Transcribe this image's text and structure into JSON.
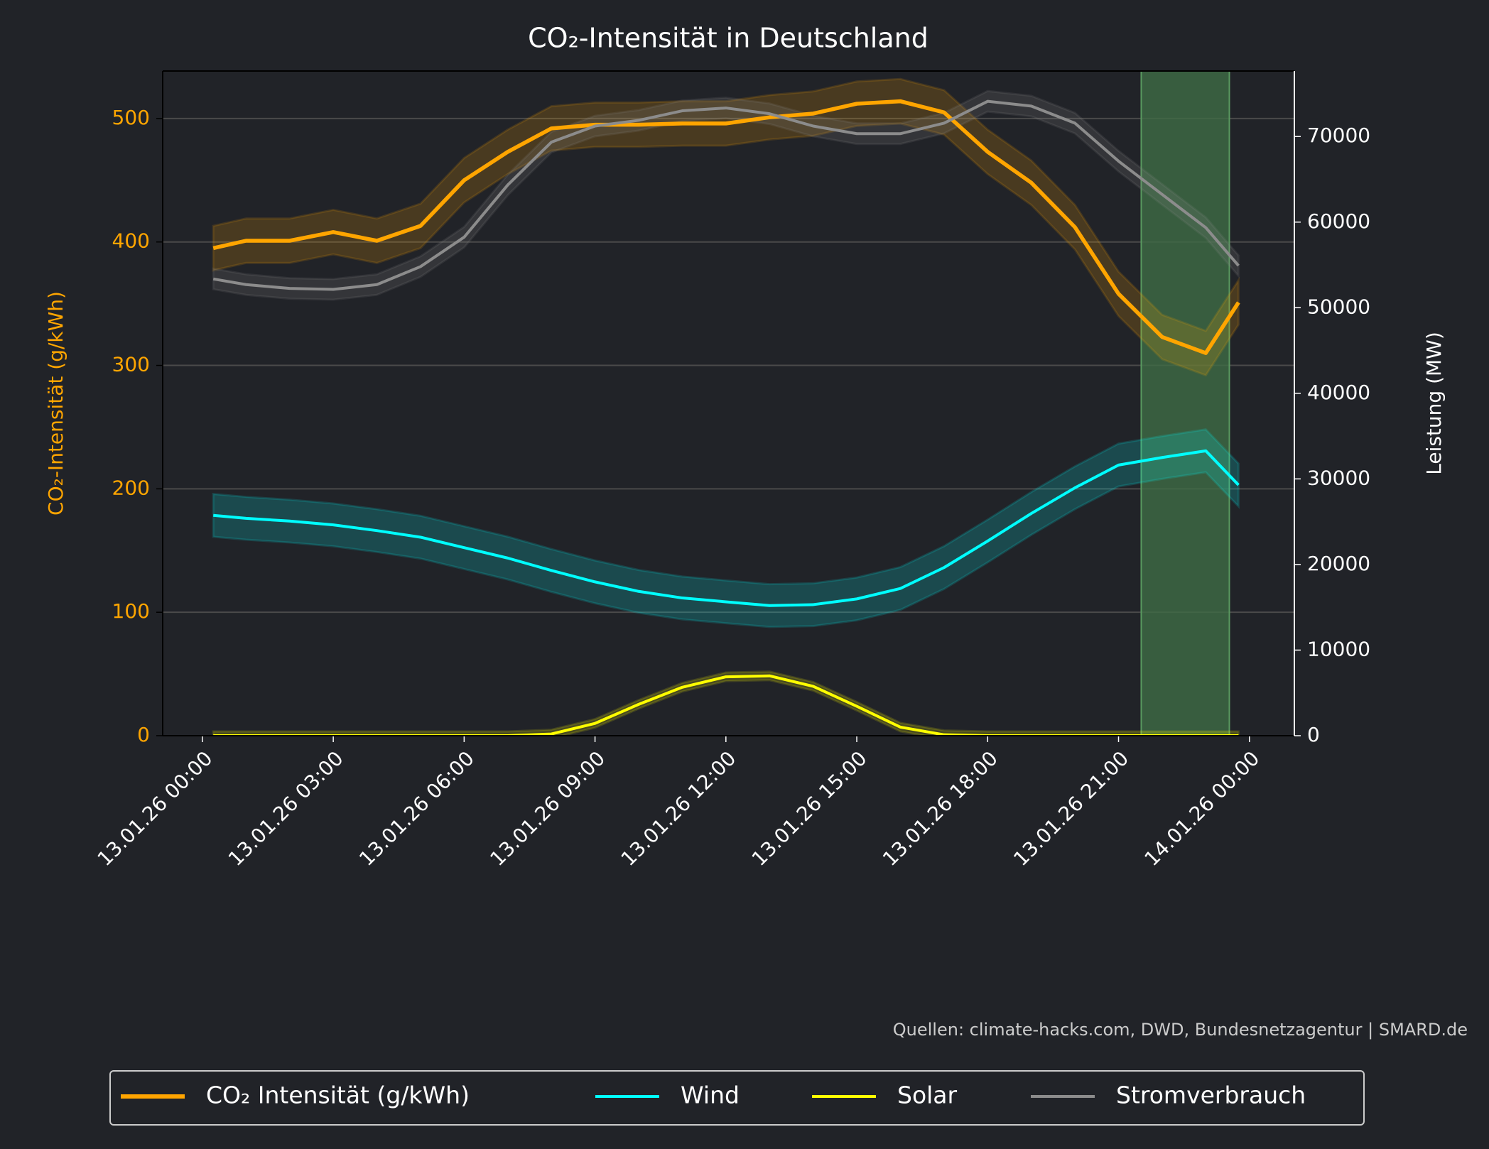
{
  "chart_data": {
    "type": "line",
    "title": "CO₂-Intensität in Deutschland",
    "ylabel": "CO₂-Intensität (g/kWh)",
    "y2label": "Leistung (MW)",
    "source": "Quellen: climate-hacks.com, DWD, Bundesnetzagentur | SMARD.de",
    "x": [
      0.25,
      1,
      2,
      3,
      4,
      5,
      6,
      7,
      8,
      9,
      10,
      11,
      12,
      13,
      14,
      15,
      16,
      17,
      18,
      19,
      20,
      21,
      22,
      23,
      23.75
    ],
    "xlim": [
      -0.91,
      25.03
    ],
    "xticks": [
      {
        "value": 0,
        "label": "13.01.26 00:00"
      },
      {
        "value": 3,
        "label": "13.01.26 03:00"
      },
      {
        "value": 6,
        "label": "13.01.26 06:00"
      },
      {
        "value": 9,
        "label": "13.01.26 09:00"
      },
      {
        "value": 12,
        "label": "13.01.26 12:00"
      },
      {
        "value": 15,
        "label": "13.01.26 15:00"
      },
      {
        "value": 18,
        "label": "13.01.26 18:00"
      },
      {
        "value": 21,
        "label": "13.01.26 21:00"
      },
      {
        "value": 24,
        "label": "14.01.26 00:00"
      }
    ],
    "ylim": [
      0,
      538.5
    ],
    "yticks": [
      0,
      100,
      200,
      300,
      400,
      500
    ],
    "y2lim": [
      0,
      77650
    ],
    "y2ticks": [
      0,
      10000,
      20000,
      30000,
      40000,
      50000,
      60000,
      70000
    ],
    "grid": true,
    "highlight": [
      21.52,
      23.54
    ],
    "highlight_color": "#3f6b45",
    "series": [
      {
        "name": "CO₂ Intensität (g/kWh)",
        "color": "#ffa500",
        "axis": "y",
        "band": 18,
        "values": [
          395,
          401,
          401,
          408,
          401,
          413,
          450,
          473,
          492,
          495,
          495,
          496,
          496,
          501,
          504,
          512,
          514,
          505,
          473,
          448,
          412,
          358,
          323,
          310,
          351
        ]
      },
      {
        "name": "Wind",
        "color": "#00ffff",
        "axis": "y2",
        "band": 2500,
        "values": [
          25740,
          25400,
          25070,
          24630,
          23960,
          23190,
          21970,
          20750,
          19300,
          17970,
          16860,
          16090,
          15640,
          15200,
          15310,
          15980,
          17200,
          19640,
          22740,
          25960,
          28960,
          31620,
          32500,
          33280,
          29290
        ]
      },
      {
        "name": "Solar",
        "color": "#ffff00",
        "axis": "y2",
        "band": 500,
        "values": [
          0,
          0,
          0,
          0,
          0,
          0,
          0,
          0,
          200,
          1440,
          3660,
          5660,
          6880,
          6990,
          5770,
          3440,
          1000,
          110,
          0,
          0,
          0,
          0,
          0,
          0,
          0
        ]
      },
      {
        "name": "Stromverbrauch",
        "color": "#8c8c8c",
        "axis": "y2",
        "band": 1200,
        "values": [
          53360,
          52700,
          52250,
          52140,
          52700,
          54800,
          58240,
          64340,
          69340,
          71220,
          71890,
          73000,
          73330,
          72660,
          71220,
          70330,
          70330,
          71560,
          74110,
          73550,
          71560,
          67120,
          63230,
          59350,
          54910
        ]
      }
    ]
  }
}
